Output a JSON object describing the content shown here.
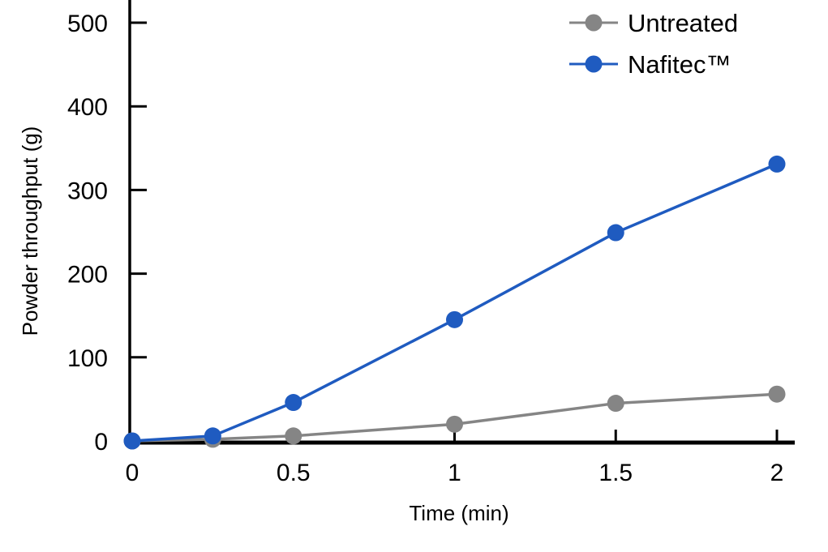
{
  "chart_data": {
    "type": "line",
    "xlabel": "Time (min)",
    "ylabel": "Powder throughput (g)",
    "xlim": [
      0,
      2
    ],
    "ylim": [
      0,
      500
    ],
    "x_ticks": [
      0,
      0.5,
      1,
      1.5,
      2
    ],
    "x_tick_labels": [
      "0",
      "0.5",
      "1",
      "1.5",
      "2"
    ],
    "y_ticks": [
      0,
      100,
      200,
      300,
      400,
      500
    ],
    "y_tick_labels": [
      "0",
      "100",
      "200",
      "300",
      "400",
      "500"
    ],
    "grid": false,
    "legend_position": "top-right",
    "series": [
      {
        "name": "Untreated",
        "color": "#858585",
        "x": [
          0,
          0.25,
          0.5,
          1,
          1.5,
          2
        ],
        "y": [
          0,
          2,
          6,
          20,
          45,
          56
        ]
      },
      {
        "name": "Nafitec™",
        "color": "#1f5bc0",
        "x": [
          0,
          0.25,
          0.5,
          1,
          1.5,
          2
        ],
        "y": [
          0,
          6,
          46,
          145,
          249,
          331
        ]
      }
    ]
  }
}
